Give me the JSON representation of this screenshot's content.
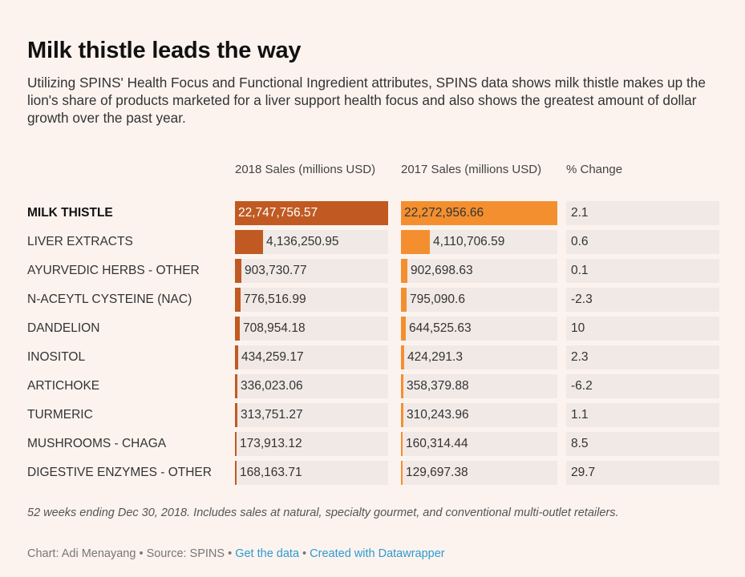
{
  "title": "Milk thistle leads the way",
  "description": "Utilizing SPINS' Health Focus and Functional Ingredient attributes, SPINS data shows milk thistle makes up the lion's share of products marketed for a liver support health focus and also shows the greatest amount of dollar growth over the past year.",
  "colors": {
    "bar_2018": "#c05a22",
    "bar_2017": "#f48f2f",
    "cell_bg": "#f0e9e6",
    "link": "#2e9bd0"
  },
  "chart_data": {
    "type": "table",
    "title": "Milk thistle leads the way",
    "columns": [
      "",
      "2018 Sales (millions USD)",
      "2017 Sales (millions USD)",
      "% Change"
    ],
    "rows": [
      {
        "name": "MILK THISTLE",
        "s2018": 22747756.57,
        "s2018_label": "22,747,756.57",
        "s2017": 22272956.66,
        "s2017_label": "22,272,956.66",
        "change": "2.1"
      },
      {
        "name": "LIVER EXTRACTS",
        "s2018": 4136250.95,
        "s2018_label": "4,136,250.95",
        "s2017": 4110706.59,
        "s2017_label": "4,110,706.59",
        "change": "0.6"
      },
      {
        "name": "AYURVEDIC HERBS - OTHER",
        "s2018": 903730.77,
        "s2018_label": "903,730.77",
        "s2017": 902698.63,
        "s2017_label": "902,698.63",
        "change": "0.1"
      },
      {
        "name": "N-ACEYTL CYSTEINE (NAC)",
        "s2018": 776516.99,
        "s2018_label": "776,516.99",
        "s2017": 795090.6,
        "s2017_label": "795,090.6",
        "change": "-2.3"
      },
      {
        "name": "DANDELION",
        "s2018": 708954.18,
        "s2018_label": "708,954.18",
        "s2017": 644525.63,
        "s2017_label": "644,525.63",
        "change": "10"
      },
      {
        "name": "INOSITOL",
        "s2018": 434259.17,
        "s2018_label": "434,259.17",
        "s2017": 424291.3,
        "s2017_label": "424,291.3",
        "change": "2.3"
      },
      {
        "name": "ARTICHOKE",
        "s2018": 336023.06,
        "s2018_label": "336,023.06",
        "s2017": 358379.88,
        "s2017_label": "358,379.88",
        "change": "-6.2"
      },
      {
        "name": "TURMERIC",
        "s2018": 313751.27,
        "s2018_label": "313,751.27",
        "s2017": 310243.96,
        "s2017_label": "310,243.96",
        "change": "1.1"
      },
      {
        "name": "MUSHROOMS - CHAGA",
        "s2018": 173913.12,
        "s2018_label": "173,913.12",
        "s2017": 160314.44,
        "s2017_label": "160,314.44",
        "change": "8.5"
      },
      {
        "name": "DIGESTIVE ENZYMES - OTHER",
        "s2018": 168163.71,
        "s2018_label": "168,163.71",
        "s2017": 129697.38,
        "s2017_label": "129,697.38",
        "change": "29.7"
      }
    ]
  },
  "notes": "52 weeks ending Dec 30, 2018. Includes sales at natural, specialty gourmet, and conventional multi-outlet retailers.",
  "credits": {
    "chart": "Chart: Adi Menayang",
    "sep": " • ",
    "source": "Source: SPINS",
    "get_data": "Get the data",
    "created_with": "Created with Datawrapper"
  }
}
